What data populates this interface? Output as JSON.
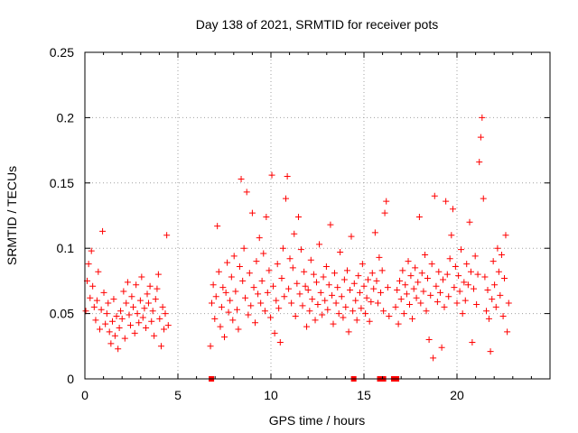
{
  "chart_data": {
    "type": "scatter",
    "title": "Day 138 of 2021, SRMTID for receiver pots",
    "xlabel": "GPS time / hours",
    "ylabel": "SRMTID / TECUs",
    "xlim": [
      0,
      25
    ],
    "ylim": [
      0,
      0.25
    ],
    "xticks": [
      0,
      5,
      10,
      15,
      20
    ],
    "xtick_labels": [
      "0",
      "5",
      "10",
      "15",
      "20"
    ],
    "yticks": [
      0,
      0.05,
      0.1,
      0.15,
      0.2,
      0.25
    ],
    "ytick_labels": [
      "0",
      "0.05",
      "0.1",
      "0.15",
      "0.2",
      "0.25"
    ],
    "grid": true,
    "marker": "plus",
    "color": "#ff0000",
    "series": [
      {
        "name": "SRMTID",
        "points": [
          [
            0.05,
            0.052
          ],
          [
            0.12,
            0.075
          ],
          [
            0.2,
            0.088
          ],
          [
            0.28,
            0.062
          ],
          [
            0.35,
            0.098
          ],
          [
            0.42,
            0.071
          ],
          [
            0.5,
            0.055
          ],
          [
            0.58,
            0.045
          ],
          [
            0.65,
            0.06
          ],
          [
            0.72,
            0.082
          ],
          [
            0.8,
            0.038
          ],
          [
            0.88,
            0.053
          ],
          [
            0.95,
            0.113
          ],
          [
            1.02,
            0.066
          ],
          [
            1.1,
            0.042
          ],
          [
            1.18,
            0.05
          ],
          [
            1.25,
            0.058
          ],
          [
            1.32,
            0.036
          ],
          [
            1.4,
            0.027
          ],
          [
            1.48,
            0.044
          ],
          [
            1.55,
            0.061
          ],
          [
            1.62,
            0.033
          ],
          [
            1.7,
            0.048
          ],
          [
            1.78,
            0.023
          ],
          [
            1.85,
            0.039
          ],
          [
            1.92,
            0.052
          ],
          [
            2.0,
            0.046
          ],
          [
            2.08,
            0.067
          ],
          [
            2.15,
            0.031
          ],
          [
            2.22,
            0.058
          ],
          [
            2.3,
            0.074
          ],
          [
            2.38,
            0.049
          ],
          [
            2.45,
            0.041
          ],
          [
            2.52,
            0.063
          ],
          [
            2.6,
            0.055
          ],
          [
            2.68,
            0.035
          ],
          [
            2.75,
            0.072
          ],
          [
            2.82,
            0.05
          ],
          [
            2.9,
            0.043
          ],
          [
            2.98,
            0.06
          ],
          [
            3.05,
            0.078
          ],
          [
            3.12,
            0.047
          ],
          [
            3.2,
            0.054
          ],
          [
            3.28,
            0.039
          ],
          [
            3.35,
            0.065
          ],
          [
            3.42,
            0.058
          ],
          [
            3.5,
            0.071
          ],
          [
            3.58,
            0.044
          ],
          [
            3.65,
            0.052
          ],
          [
            3.72,
            0.033
          ],
          [
            3.8,
            0.061
          ],
          [
            3.88,
            0.069
          ],
          [
            3.95,
            0.08
          ],
          [
            4.02,
            0.046
          ],
          [
            4.1,
            0.025
          ],
          [
            4.18,
            0.055
          ],
          [
            4.25,
            0.038
          ],
          [
            4.32,
            0.05
          ],
          [
            4.4,
            0.11
          ],
          [
            4.48,
            0.041
          ],
          [
            6.75,
            0.025
          ],
          [
            6.82,
            0.058
          ],
          [
            6.9,
            0.072
          ],
          [
            6.98,
            0.046
          ],
          [
            7.05,
            0.063
          ],
          [
            7.12,
            0.117
          ],
          [
            7.2,
            0.082
          ],
          [
            7.28,
            0.04
          ],
          [
            7.35,
            0.055
          ],
          [
            7.42,
            0.07
          ],
          [
            7.5,
            0.032
          ],
          [
            7.58,
            0.066
          ],
          [
            7.65,
            0.089
          ],
          [
            7.72,
            0.051
          ],
          [
            7.8,
            0.06
          ],
          [
            7.88,
            0.078
          ],
          [
            7.95,
            0.045
          ],
          [
            8.02,
            0.094
          ],
          [
            8.1,
            0.067
          ],
          [
            8.18,
            0.053
          ],
          [
            8.25,
            0.038
          ],
          [
            8.32,
            0.086
          ],
          [
            8.4,
            0.153
          ],
          [
            8.48,
            0.075
          ],
          [
            8.55,
            0.1
          ],
          [
            8.62,
            0.062
          ],
          [
            8.7,
            0.143
          ],
          [
            8.78,
            0.049
          ],
          [
            8.85,
            0.081
          ],
          [
            8.92,
            0.056
          ],
          [
            9.0,
            0.127
          ],
          [
            9.08,
            0.07
          ],
          [
            9.15,
            0.043
          ],
          [
            9.22,
            0.09
          ],
          [
            9.3,
            0.065
          ],
          [
            9.38,
            0.108
          ],
          [
            9.45,
            0.058
          ],
          [
            9.52,
            0.075
          ],
          [
            9.6,
            0.096
          ],
          [
            9.68,
            0.052
          ],
          [
            9.75,
            0.124
          ],
          [
            9.82,
            0.066
          ],
          [
            9.9,
            0.083
          ],
          [
            9.98,
            0.047
          ],
          [
            10.05,
            0.156
          ],
          [
            10.12,
            0.071
          ],
          [
            10.2,
            0.035
          ],
          [
            10.28,
            0.06
          ],
          [
            10.35,
            0.088
          ],
          [
            10.42,
            0.054
          ],
          [
            10.5,
            0.028
          ],
          [
            10.58,
            0.077
          ],
          [
            10.65,
            0.1
          ],
          [
            10.72,
            0.063
          ],
          [
            10.8,
            0.138
          ],
          [
            10.88,
            0.155
          ],
          [
            10.95,
            0.069
          ],
          [
            11.02,
            0.092
          ],
          [
            11.1,
            0.058
          ],
          [
            11.18,
            0.085
          ],
          [
            11.25,
            0.111
          ],
          [
            11.32,
            0.048
          ],
          [
            11.4,
            0.073
          ],
          [
            11.48,
            0.124
          ],
          [
            11.55,
            0.065
          ],
          [
            11.62,
            0.099
          ],
          [
            11.7,
            0.056
          ],
          [
            11.78,
            0.082
          ],
          [
            11.85,
            0.071
          ],
          [
            11.92,
            0.04
          ],
          [
            12.0,
            0.068
          ],
          [
            12.08,
            0.052
          ],
          [
            12.15,
            0.091
          ],
          [
            12.22,
            0.061
          ],
          [
            12.3,
            0.08
          ],
          [
            12.38,
            0.045
          ],
          [
            12.45,
            0.074
          ],
          [
            12.52,
            0.057
          ],
          [
            12.6,
            0.103
          ],
          [
            12.68,
            0.066
          ],
          [
            12.75,
            0.049
          ],
          [
            12.82,
            0.078
          ],
          [
            12.9,
            0.06
          ],
          [
            12.98,
            0.086
          ],
          [
            13.05,
            0.053
          ],
          [
            13.12,
            0.072
          ],
          [
            13.2,
            0.118
          ],
          [
            13.28,
            0.064
          ],
          [
            13.35,
            0.042
          ],
          [
            13.42,
            0.081
          ],
          [
            13.5,
            0.058
          ],
          [
            13.58,
            0.07
          ],
          [
            13.65,
            0.05
          ],
          [
            13.72,
            0.097
          ],
          [
            13.8,
            0.063
          ],
          [
            13.88,
            0.047
          ],
          [
            13.95,
            0.076
          ],
          [
            14.02,
            0.055
          ],
          [
            14.1,
            0.083
          ],
          [
            14.18,
            0.036
          ],
          [
            14.25,
            0.068
          ],
          [
            14.32,
            0.109
          ],
          [
            14.4,
            0.052
          ],
          [
            14.48,
            0.073
          ],
          [
            14.55,
            0.06
          ],
          [
            14.62,
            0.045
          ],
          [
            14.7,
            0.079
          ],
          [
            14.78,
            0.066
          ],
          [
            14.85,
            0.054
          ],
          [
            14.92,
            0.088
          ],
          [
            15.0,
            0.071
          ],
          [
            15.08,
            0.05
          ],
          [
            15.15,
            0.062
          ],
          [
            15.22,
            0.076
          ],
          [
            15.3,
            0.044
          ],
          [
            15.38,
            0.059
          ],
          [
            15.45,
            0.081
          ],
          [
            15.52,
            0.069
          ],
          [
            15.6,
            0.112
          ],
          [
            15.68,
            0.075
          ],
          [
            15.75,
            0.058
          ],
          [
            15.82,
            0.093
          ],
          [
            15.9,
            0.066
          ],
          [
            15.98,
            0.083
          ],
          [
            16.05,
            0.052
          ],
          [
            16.12,
            0.127
          ],
          [
            16.2,
            0.136
          ],
          [
            16.28,
            0.07
          ],
          [
            16.35,
            0.048
          ],
          [
            16.7,
            0.055
          ],
          [
            16.78,
            0.068
          ],
          [
            16.85,
            0.042
          ],
          [
            16.92,
            0.075
          ],
          [
            17.0,
            0.061
          ],
          [
            17.08,
            0.083
          ],
          [
            17.15,
            0.05
          ],
          [
            17.22,
            0.072
          ],
          [
            17.3,
            0.065
          ],
          [
            17.38,
            0.09
          ],
          [
            17.45,
            0.057
          ],
          [
            17.52,
            0.079
          ],
          [
            17.6,
            0.046
          ],
          [
            17.68,
            0.069
          ],
          [
            17.75,
            0.085
          ],
          [
            17.82,
            0.062
          ],
          [
            17.9,
            0.074
          ],
          [
            17.98,
            0.124
          ],
          [
            18.05,
            0.058
          ],
          [
            18.12,
            0.081
          ],
          [
            18.2,
            0.067
          ],
          [
            18.28,
            0.095
          ],
          [
            18.35,
            0.052
          ],
          [
            18.42,
            0.077
          ],
          [
            18.5,
            0.03
          ],
          [
            18.58,
            0.064
          ],
          [
            18.65,
            0.088
          ],
          [
            18.72,
            0.016
          ],
          [
            18.8,
            0.14
          ],
          [
            18.88,
            0.071
          ],
          [
            18.95,
            0.059
          ],
          [
            19.02,
            0.082
          ],
          [
            19.1,
            0.066
          ],
          [
            19.18,
            0.024
          ],
          [
            19.25,
            0.076
          ],
          [
            19.32,
            0.055
          ],
          [
            19.4,
            0.136
          ],
          [
            19.48,
            0.08
          ],
          [
            19.55,
            0.063
          ],
          [
            19.62,
            0.092
          ],
          [
            19.7,
            0.11
          ],
          [
            19.78,
            0.13
          ],
          [
            19.85,
            0.07
          ],
          [
            19.92,
            0.086
          ],
          [
            20.0,
            0.058
          ],
          [
            20.08,
            0.079
          ],
          [
            20.15,
            0.067
          ],
          [
            20.22,
            0.099
          ],
          [
            20.3,
            0.05
          ],
          [
            20.38,
            0.074
          ],
          [
            20.45,
            0.06
          ],
          [
            20.52,
            0.088
          ],
          [
            20.6,
            0.072
          ],
          [
            20.68,
            0.12
          ],
          [
            20.75,
            0.082
          ],
          [
            20.82,
            0.028
          ],
          [
            20.9,
            0.069
          ],
          [
            20.98,
            0.094
          ],
          [
            21.05,
            0.057
          ],
          [
            21.12,
            0.08
          ],
          [
            21.2,
            0.166
          ],
          [
            21.28,
            0.185
          ],
          [
            21.35,
            0.2
          ],
          [
            21.42,
            0.138
          ],
          [
            21.5,
            0.078
          ],
          [
            21.58,
            0.052
          ],
          [
            21.65,
            0.068
          ],
          [
            21.72,
            0.046
          ],
          [
            21.8,
            0.021
          ],
          [
            21.88,
            0.061
          ],
          [
            21.95,
            0.09
          ],
          [
            22.02,
            0.072
          ],
          [
            22.1,
            0.055
          ],
          [
            22.18,
            0.1
          ],
          [
            22.25,
            0.082
          ],
          [
            22.32,
            0.064
          ],
          [
            22.4,
            0.095
          ],
          [
            22.48,
            0.048
          ],
          [
            22.55,
            0.077
          ],
          [
            22.62,
            0.11
          ],
          [
            22.7,
            0.036
          ],
          [
            22.78,
            0.058
          ],
          [
            6.8,
            0.0
          ],
          [
            14.45,
            0.0
          ],
          [
            15.85,
            0.0
          ],
          [
            16.05,
            0.0
          ],
          [
            16.6,
            0.0
          ],
          [
            16.75,
            0.0
          ]
        ]
      }
    ]
  }
}
